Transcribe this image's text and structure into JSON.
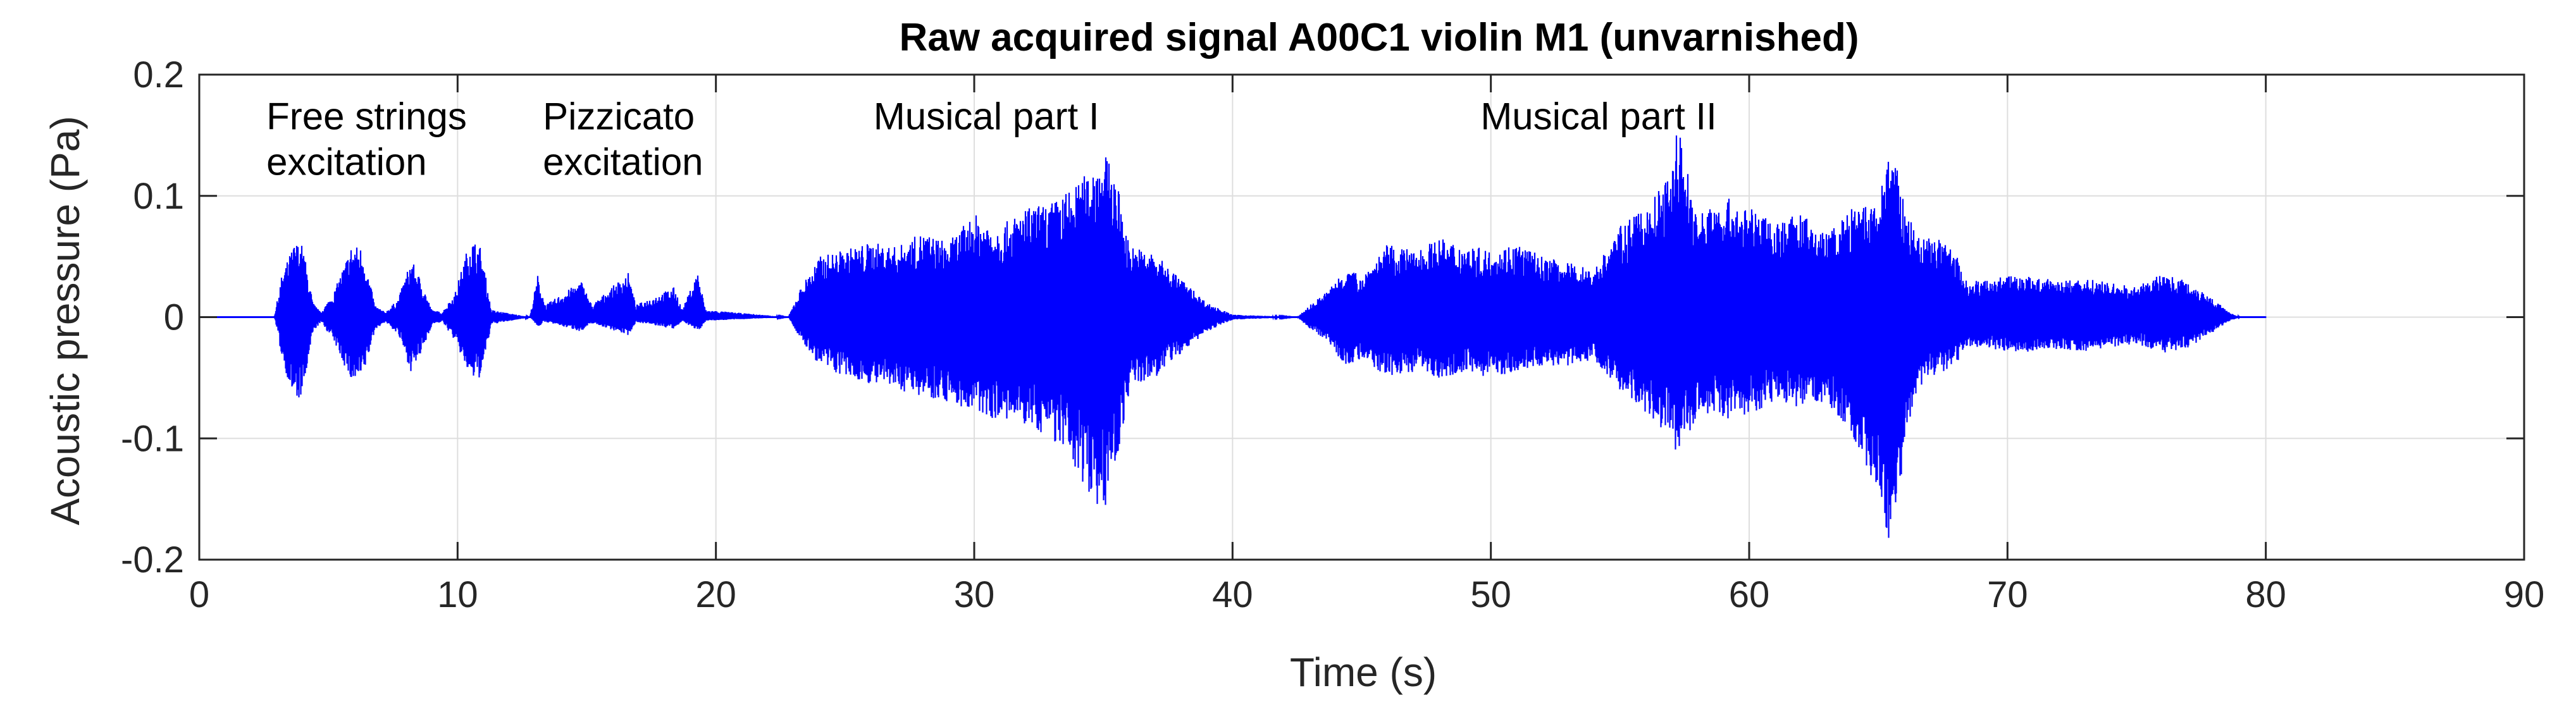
{
  "chart_data": {
    "type": "line",
    "title": "Raw acquired signal A00C1 violin M1 (unvarnished)",
    "xlabel": "Time (s)",
    "ylabel": "Acoustic pressure (Pa)",
    "xlim": [
      0,
      90
    ],
    "ylim": [
      -0.2,
      0.2
    ],
    "xticks": [
      0,
      10,
      20,
      30,
      40,
      50,
      60,
      70,
      80,
      90
    ],
    "xtick_labels": [
      "0",
      "10",
      "20",
      "30",
      "40",
      "50",
      "60",
      "70",
      "80",
      "90"
    ],
    "yticks": [
      0.2,
      0.1,
      0,
      -0.1,
      -0.2
    ],
    "ytick_labels": [
      "0.2",
      "0.1",
      "0",
      "-0.1",
      "-0.2"
    ],
    "grid": true,
    "line_color": "#0000ff",
    "signal_range_s": [
      0,
      80
    ],
    "series": [
      {
        "envelope_upper": [
          [
            0,
            0
          ],
          [
            2.9,
            0
          ],
          [
            3.2,
            0.035
          ],
          [
            3.7,
            0.062
          ],
          [
            4.0,
            0.06
          ],
          [
            4.4,
            0.012
          ],
          [
            4.7,
            0.004
          ],
          [
            5.2,
            0.02
          ],
          [
            5.9,
            0.06
          ],
          [
            6.3,
            0.058
          ],
          [
            6.8,
            0.01
          ],
          [
            7.2,
            0.004
          ],
          [
            7.7,
            0.015
          ],
          [
            8.2,
            0.048
          ],
          [
            8.6,
            0.03
          ],
          [
            9.0,
            0.006
          ],
          [
            9.4,
            0.004
          ],
          [
            9.9,
            0.02
          ],
          [
            10.5,
            0.066
          ],
          [
            10.9,
            0.058
          ],
          [
            11.3,
            0.006
          ],
          [
            12.8,
            0
          ],
          [
            13.1,
            0.035
          ],
          [
            13.4,
            0.01
          ],
          [
            14.8,
            0.03
          ],
          [
            15.2,
            0.01
          ],
          [
            16.6,
            0.037
          ],
          [
            16.9,
            0.01
          ],
          [
            18.4,
            0.025
          ],
          [
            18.7,
            0.006
          ],
          [
            19.3,
            0.038
          ],
          [
            19.6,
            0.006
          ],
          [
            22.8,
            0
          ],
          [
            23.3,
            0.025
          ],
          [
            24,
            0.05
          ],
          [
            25,
            0.056
          ],
          [
            26,
            0.062
          ],
          [
            27,
            0.058
          ],
          [
            28,
            0.07
          ],
          [
            29,
            0.062
          ],
          [
            30,
            0.085
          ],
          [
            31,
            0.075
          ],
          [
            32,
            0.09
          ],
          [
            33,
            0.095
          ],
          [
            34,
            0.11
          ],
          [
            35,
            0.138
          ],
          [
            35.5,
            0.115
          ],
          [
            36,
            0.06
          ],
          [
            37,
            0.052
          ],
          [
            38,
            0.032
          ],
          [
            39,
            0.012
          ],
          [
            40,
            0.002
          ],
          [
            42.5,
            0
          ],
          [
            43,
            0.01
          ],
          [
            43.7,
            0.022
          ],
          [
            44.3,
            0.04
          ],
          [
            45,
            0.035
          ],
          [
            46,
            0.06
          ],
          [
            47,
            0.055
          ],
          [
            48,
            0.065
          ],
          [
            49,
            0.06
          ],
          [
            50,
            0.055
          ],
          [
            51,
            0.062
          ],
          [
            52,
            0.05
          ],
          [
            53,
            0.045
          ],
          [
            54,
            0.04
          ],
          [
            55,
            0.075
          ],
          [
            56,
            0.09
          ],
          [
            57,
            0.12
          ],
          [
            57.2,
            0.163
          ],
          [
            57.6,
            0.125
          ],
          [
            58,
            0.085
          ],
          [
            59,
            0.1
          ],
          [
            60,
            0.09
          ],
          [
            61,
            0.08
          ],
          [
            62,
            0.085
          ],
          [
            63,
            0.07
          ],
          [
            64,
            0.09
          ],
          [
            65,
            0.095
          ],
          [
            65.4,
            0.138
          ],
          [
            65.8,
            0.118
          ],
          [
            66,
            0.095
          ],
          [
            66.5,
            0.065
          ],
          [
            67,
            0.07
          ],
          [
            68,
            0.055
          ],
          [
            68.3,
            0.032
          ],
          [
            69,
            0.03
          ],
          [
            70,
            0.035
          ],
          [
            71,
            0.033
          ],
          [
            72,
            0.03
          ],
          [
            73,
            0.032
          ],
          [
            74,
            0.028
          ],
          [
            75,
            0.025
          ],
          [
            76,
            0.036
          ],
          [
            77,
            0.03
          ],
          [
            78,
            0.015
          ],
          [
            78.5,
            0.005
          ],
          [
            79,
            0
          ],
          [
            80,
            0
          ]
        ],
        "envelope_lower": [
          [
            0,
            0
          ],
          [
            2.9,
            0
          ],
          [
            3.2,
            -0.035
          ],
          [
            3.7,
            -0.072
          ],
          [
            4.0,
            -0.065
          ],
          [
            4.4,
            -0.012
          ],
          [
            4.7,
            -0.004
          ],
          [
            5.2,
            -0.02
          ],
          [
            5.9,
            -0.055
          ],
          [
            6.3,
            -0.052
          ],
          [
            6.8,
            -0.01
          ],
          [
            7.2,
            -0.004
          ],
          [
            7.7,
            -0.015
          ],
          [
            8.2,
            -0.046
          ],
          [
            8.6,
            -0.03
          ],
          [
            9.0,
            -0.006
          ],
          [
            9.4,
            -0.004
          ],
          [
            9.9,
            -0.02
          ],
          [
            10.5,
            -0.052
          ],
          [
            10.9,
            -0.05
          ],
          [
            11.3,
            -0.006
          ],
          [
            12.8,
            0
          ],
          [
            13.1,
            -0.008
          ],
          [
            13.4,
            -0.004
          ],
          [
            14.8,
            -0.012
          ],
          [
            15.2,
            -0.005
          ],
          [
            16.6,
            -0.015
          ],
          [
            16.9,
            -0.004
          ],
          [
            18.4,
            -0.01
          ],
          [
            18.7,
            -0.003
          ],
          [
            19.3,
            -0.012
          ],
          [
            19.6,
            -0.003
          ],
          [
            22.8,
            0
          ],
          [
            23.3,
            -0.02
          ],
          [
            24,
            -0.04
          ],
          [
            25,
            -0.05
          ],
          [
            26,
            -0.055
          ],
          [
            27,
            -0.06
          ],
          [
            28,
            -0.065
          ],
          [
            29,
            -0.07
          ],
          [
            30,
            -0.08
          ],
          [
            31,
            -0.085
          ],
          [
            32,
            -0.09
          ],
          [
            33,
            -0.1
          ],
          [
            34,
            -0.13
          ],
          [
            35,
            -0.163
          ],
          [
            35.5,
            -0.12
          ],
          [
            36,
            -0.06
          ],
          [
            37,
            -0.05
          ],
          [
            38,
            -0.03
          ],
          [
            39,
            -0.012
          ],
          [
            40,
            -0.002
          ],
          [
            42.5,
            0
          ],
          [
            43,
            -0.01
          ],
          [
            43.7,
            -0.02
          ],
          [
            44.3,
            -0.04
          ],
          [
            45,
            -0.035
          ],
          [
            46,
            -0.05
          ],
          [
            47,
            -0.045
          ],
          [
            48,
            -0.05
          ],
          [
            49,
            -0.045
          ],
          [
            50,
            -0.05
          ],
          [
            51,
            -0.045
          ],
          [
            52,
            -0.04
          ],
          [
            53,
            -0.04
          ],
          [
            54,
            -0.035
          ],
          [
            55,
            -0.06
          ],
          [
            56,
            -0.08
          ],
          [
            57,
            -0.1
          ],
          [
            57.2,
            -0.115
          ],
          [
            57.6,
            -0.1
          ],
          [
            58,
            -0.08
          ],
          [
            59,
            -0.085
          ],
          [
            60,
            -0.08
          ],
          [
            61,
            -0.07
          ],
          [
            62,
            -0.075
          ],
          [
            63,
            -0.07
          ],
          [
            64,
            -0.1
          ],
          [
            65,
            -0.145
          ],
          [
            65.4,
            -0.187
          ],
          [
            65.8,
            -0.16
          ],
          [
            66,
            -0.1
          ],
          [
            66.5,
            -0.06
          ],
          [
            67,
            -0.05
          ],
          [
            68,
            -0.04
          ],
          [
            68.3,
            -0.025
          ],
          [
            69,
            -0.025
          ],
          [
            70,
            -0.028
          ],
          [
            71,
            -0.03
          ],
          [
            72,
            -0.027
          ],
          [
            73,
            -0.028
          ],
          [
            74,
            -0.025
          ],
          [
            75,
            -0.022
          ],
          [
            76,
            -0.03
          ],
          [
            77,
            -0.025
          ],
          [
            78,
            -0.012
          ],
          [
            78.5,
            -0.004
          ],
          [
            79,
            0
          ],
          [
            80,
            0
          ]
        ]
      }
    ],
    "annotations": [
      {
        "lines": [
          "Free strings",
          "excitation"
        ],
        "x": 2.6,
        "y": 0.155
      },
      {
        "lines": [
          "Pizzicato",
          "excitation"
        ],
        "x": 13.3,
        "y": 0.155
      },
      {
        "lines": [
          "Musical part I"
        ],
        "x": 26.1,
        "y": 0.155
      },
      {
        "lines": [
          "Musical part II"
        ],
        "x": 49.6,
        "y": 0.155
      }
    ]
  }
}
